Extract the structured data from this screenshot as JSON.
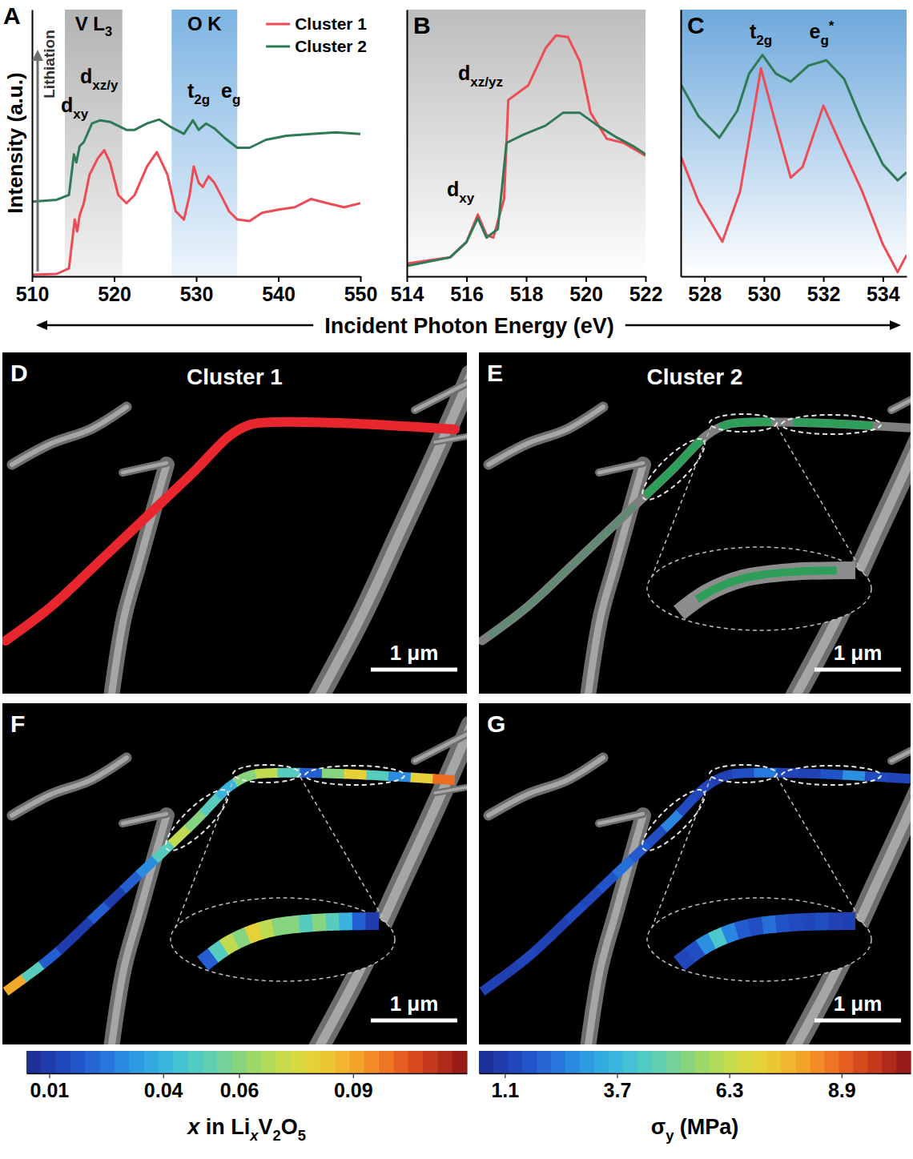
{
  "figure": {
    "xlabel": "Incident Photon Energy (eV)"
  },
  "chart_data": [
    {
      "type": "line",
      "letter": "A",
      "ylabel": "Intensity (a.u.)",
      "xlim": [
        510,
        550
      ],
      "xticks": [
        510,
        520,
        530,
        540,
        550
      ],
      "ylim": [
        0,
        100
      ],
      "yticks": [],
      "tick_labels": "x",
      "legend": "top-right",
      "arrow_label": "Lithiation",
      "regions": [
        {
          "label": [
            "V L",
            {
              "sub": "3"
            }
          ],
          "xlim": [
            514,
            521
          ]
        },
        {
          "label": [
            "O K"
          ],
          "xlim": [
            527,
            535
          ]
        }
      ],
      "annotations": [
        [
          "d",
          {
            "sub": "xz/y"
          }
        ],
        [
          "d",
          {
            "sub": "xy"
          }
        ],
        [
          "t",
          {
            "sub": "2g"
          }
        ],
        [
          "e",
          {
            "sub": "g"
          }
        ]
      ],
      "series": [
        {
          "name": "Cluster 1",
          "color": "#ef4b55",
          "x": [
            510,
            513,
            514.5,
            515.2,
            515.5,
            515.8,
            516.3,
            517,
            518,
            518.8,
            519.5,
            520.5,
            521.5,
            522.5,
            524,
            525.2,
            526.5,
            527.5,
            528.5,
            529.2,
            529.7,
            530.3,
            530.8,
            531.5,
            532.2,
            533,
            534,
            535,
            536.5,
            538,
            540,
            542,
            544,
            546,
            548,
            550
          ],
          "values": [
            0.6,
            0.9,
            3.0,
            21.3,
            16.8,
            22.9,
            27.4,
            38.1,
            44.2,
            47.3,
            42.7,
            30.5,
            27.4,
            30.5,
            41.2,
            46.6,
            38.1,
            24.4,
            21.3,
            30.5,
            41.2,
            35.1,
            33.5,
            37.5,
            35.1,
            30.5,
            24.4,
            21.3,
            20.7,
            23.8,
            25.0,
            25.9,
            29.0,
            27.4,
            25.9,
            27.4
          ]
        },
        {
          "name": "Cluster 2",
          "color": "#2e7a57",
          "x": [
            510,
            513,
            514.5,
            515.1,
            515.4,
            515.8,
            516.3,
            517.3,
            518.3,
            519.5,
            520.5,
            521.5,
            522.5,
            524,
            525.5,
            527,
            528.5,
            529.6,
            530.3,
            531.2,
            532.2,
            533.5,
            535,
            536.5,
            538.5,
            541,
            544,
            547,
            550
          ],
          "values": [
            28.0,
            28.7,
            30.5,
            45.7,
            42.7,
            48.8,
            50.3,
            57.3,
            58.5,
            57.9,
            56.4,
            54.9,
            54.9,
            57.3,
            58.8,
            55.8,
            53.4,
            58.5,
            54.9,
            57.3,
            55.5,
            51.8,
            48.2,
            48.2,
            51.2,
            52.7,
            53.4,
            54.0,
            53.4
          ]
        }
      ]
    },
    {
      "type": "line",
      "letter": "B",
      "xlim": [
        514,
        522
      ],
      "xticks": [
        514,
        516,
        518,
        520,
        522
      ],
      "ylim": [
        0,
        100
      ],
      "yticks": [],
      "tick_labels": "x",
      "annotations": [
        [
          "d",
          {
            "sub": "xz/yz"
          }
        ],
        [
          "d",
          {
            "sub": "xy"
          }
        ]
      ],
      "series": [
        {
          "color": "#ef4b55",
          "x": [
            514,
            515.45,
            516,
            516.38,
            516.67,
            516.9,
            517.26,
            517.4,
            518.07,
            518.65,
            519,
            519.4,
            519.8,
            520.16,
            520.7,
            521.27,
            522
          ],
          "values": [
            4.8,
            7.1,
            12.9,
            23.2,
            15.5,
            14.5,
            29.0,
            66.1,
            71.6,
            85.5,
            90.3,
            89.7,
            80.6,
            61.3,
            51.6,
            50.0,
            45.2
          ]
        },
        {
          "color": "#2e7a57",
          "x": [
            514,
            515.45,
            516,
            516.38,
            516.67,
            517.05,
            517.34,
            517.92,
            518.65,
            519.23,
            519.8,
            520.4,
            521,
            521.56,
            522
          ],
          "values": [
            3.9,
            7.1,
            12.9,
            21.9,
            14.5,
            17.7,
            50.0,
            53.2,
            56.5,
            61.3,
            61.3,
            56.5,
            52.3,
            49.0,
            45.8
          ]
        }
      ]
    },
    {
      "type": "line",
      "letter": "C",
      "xlim": [
        527.2,
        534.8
      ],
      "xticks": [
        528,
        530,
        532,
        534
      ],
      "ylim": [
        0,
        100
      ],
      "yticks": [],
      "tick_labels": "x",
      "annotations": [
        [
          "t",
          {
            "sub": "2g"
          }
        ],
        [
          "e",
          {
            "sub": "g"
          },
          {
            "sup": "*"
          }
        ]
      ],
      "series": [
        {
          "color": "#ef4b55",
          "x": [
            527.2,
            527.8,
            528.6,
            529.2,
            529.9,
            530.4,
            530.9,
            531.3,
            532.0,
            532.6,
            533.3,
            534.0,
            534.5,
            534.8
          ],
          "values": [
            45,
            28,
            13,
            32,
            78,
            57,
            37,
            41,
            64,
            49,
            32,
            12,
            1.6,
            8
          ]
        },
        {
          "color": "#2e7a57",
          "x": [
            527.2,
            527.8,
            528.5,
            529.1,
            529.5,
            529.95,
            530.4,
            530.9,
            531.5,
            532.1,
            532.7,
            533.3,
            534.0,
            534.5,
            534.8
          ],
          "values": [
            72,
            60,
            52,
            62,
            76,
            83,
            76,
            73,
            79,
            81,
            74,
            58,
            42,
            36,
            39
          ]
        }
      ]
    }
  ],
  "maps": [
    {
      "type": "map",
      "letter": "D",
      "title": "Cluster 1",
      "color": "#e8262e",
      "scale_bar": "1 μm"
    },
    {
      "type": "map",
      "letter": "E",
      "title": "Cluster 2",
      "color": "#2f9e5a",
      "scale_bar": "1 μm"
    },
    {
      "type": "heatmap",
      "letter": "F",
      "scale_bar": "1 μm",
      "values": [
        0.09,
        0.05,
        0.02,
        0.01,
        0.01,
        0.02,
        0.01,
        0.02,
        0.03,
        0.05,
        0.07,
        0.06,
        0.05,
        0.04,
        0.06,
        0.07,
        0.05,
        0.02,
        0.06,
        0.08,
        0.05,
        0.03,
        0.08,
        0.1
      ],
      "inset_values": [
        0.02,
        0.05,
        0.07,
        0.06,
        0.08,
        0.07,
        0.06,
        0.06,
        0.05,
        0.06,
        0.05,
        0.04,
        0.02,
        0.01
      ],
      "colorbar": {
        "range": [
          0.004,
          0.12
        ],
        "ticks": [
          0.01,
          0.04,
          0.06,
          0.09
        ],
        "label": [
          {
            "italic": "x"
          },
          " in Li",
          {
            "italic_sub": "x"
          },
          "V",
          {
            "sub": "2"
          },
          "O",
          {
            "sub": "5"
          }
        ]
      }
    },
    {
      "type": "heatmap",
      "letter": "G",
      "scale_bar": "1 μm",
      "values": [
        1.2,
        1.1,
        1.3,
        1.2,
        1.1,
        1.4,
        1.3,
        1.6,
        2.2,
        1.8,
        1.5,
        2.6,
        1.4,
        1.3,
        1.2,
        1.5,
        2.4,
        1.3,
        1.2,
        1.6,
        2.8,
        1.4,
        1.3,
        1.2
      ],
      "inset_values": [
        1.3,
        1.5,
        2.8,
        4.2,
        2.6,
        1.8,
        1.5,
        2.2,
        1.6,
        1.4,
        1.3,
        1.5,
        1.2,
        1.1
      ],
      "colorbar": {
        "range": [
          0.5,
          10.5
        ],
        "ticks": [
          1.1,
          3.7,
          6.3,
          8.9
        ],
        "label": [
          "σ",
          {
            "sub": "y"
          },
          " (MPa)"
        ]
      }
    }
  ]
}
